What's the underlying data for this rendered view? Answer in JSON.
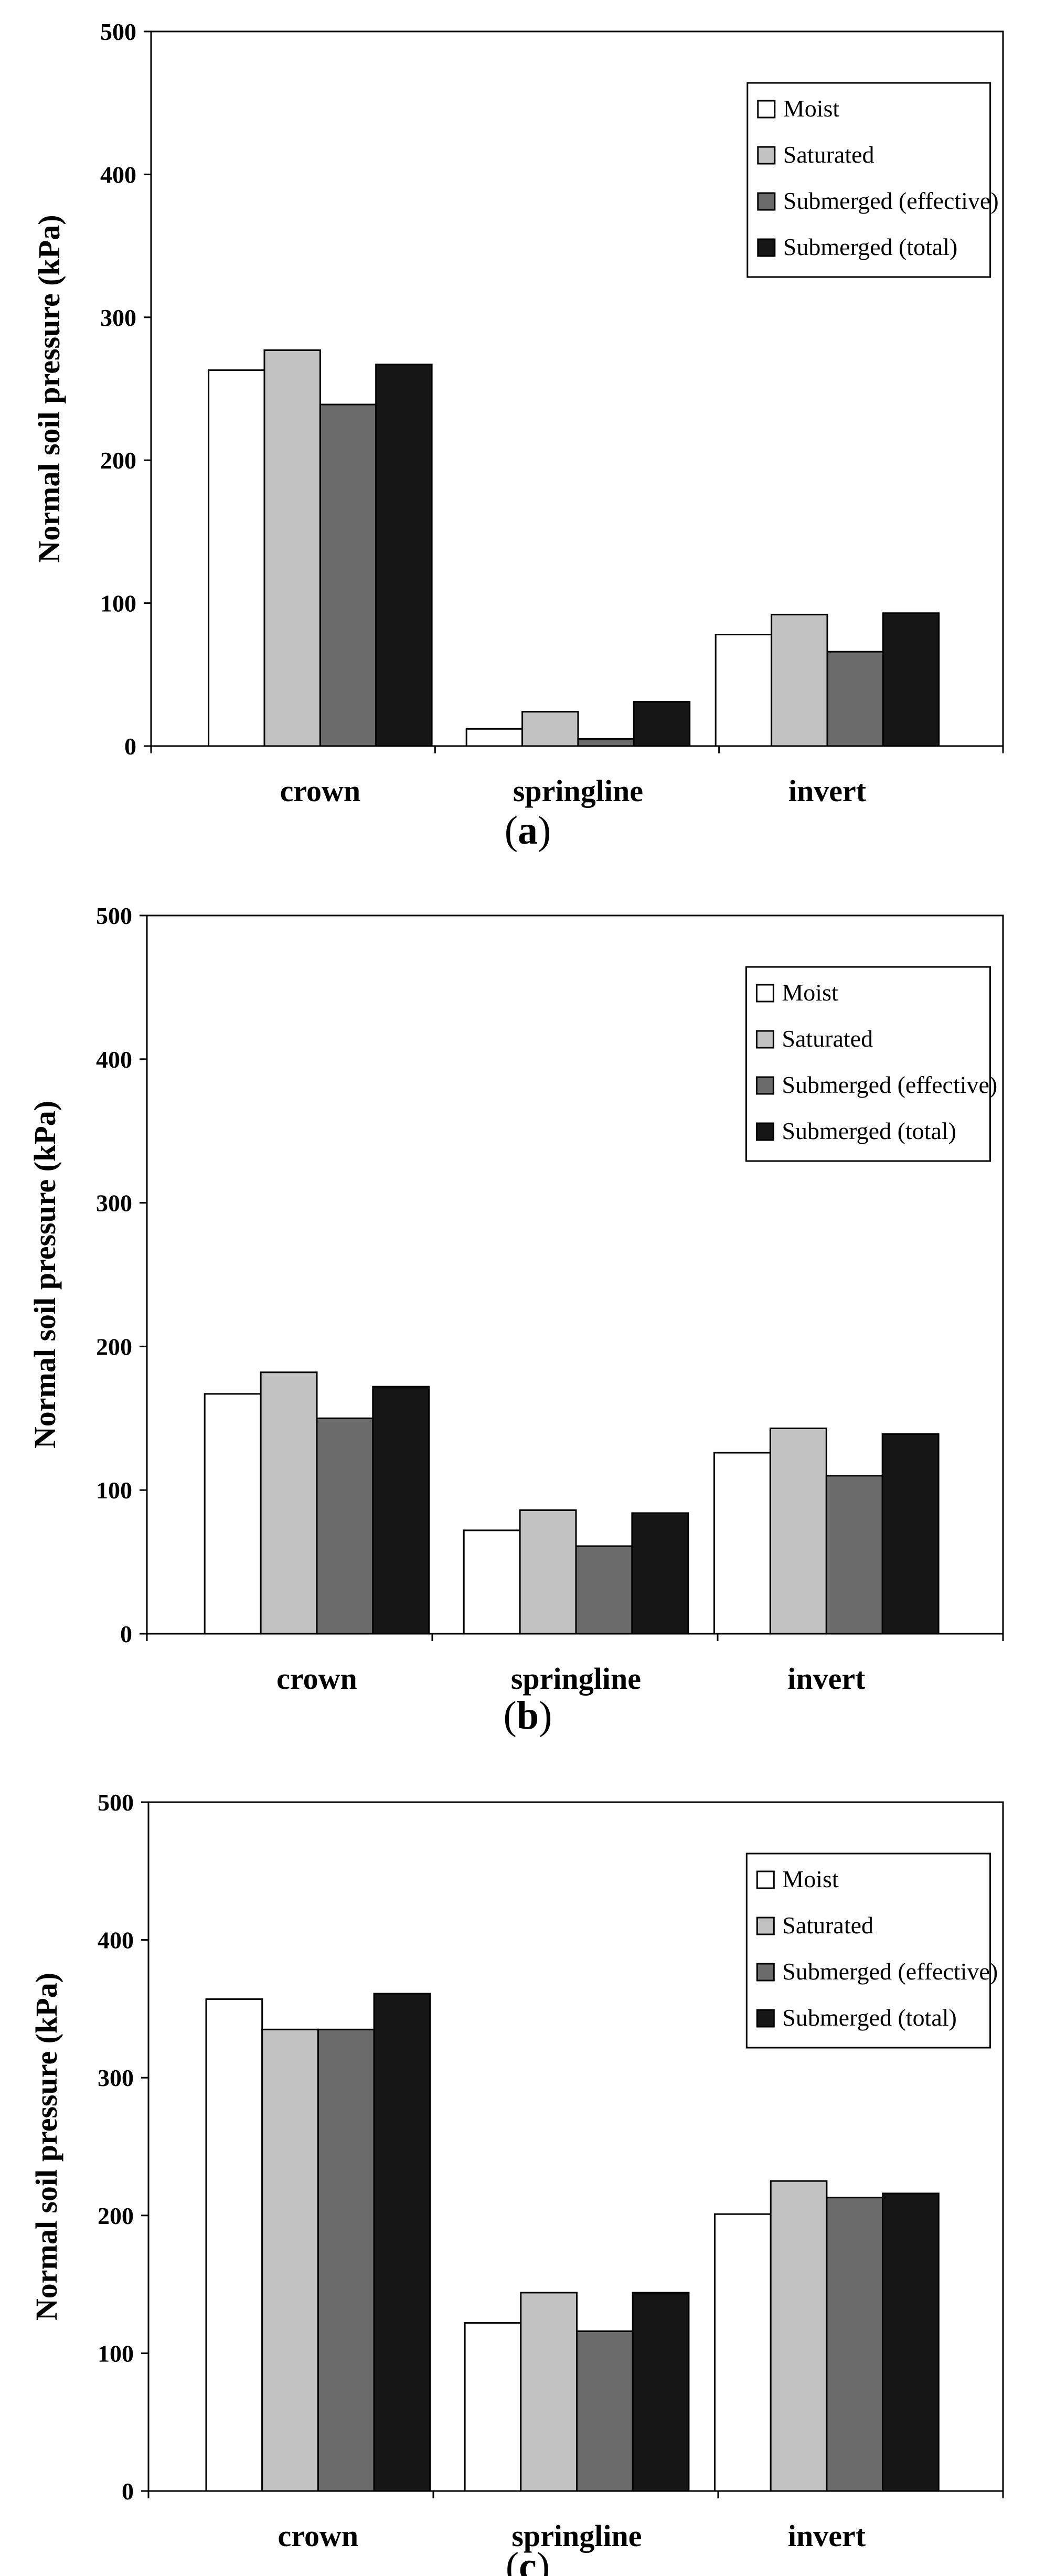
{
  "colors": {
    "Moist": "#ffffff",
    "Saturated": "#c2c2c2",
    "Submerged (effective)": "#6b6b6b",
    "Submerged (total)": "#161616"
  },
  "chart_data": [
    {
      "type": "bar",
      "panel_label": "a",
      "categories": [
        "crown",
        "springline",
        "invert"
      ],
      "series": [
        {
          "name": "Moist",
          "values": [
            263,
            12,
            78
          ]
        },
        {
          "name": "Saturated",
          "values": [
            277,
            24,
            92
          ]
        },
        {
          "name": "Submerged (effective)",
          "values": [
            239,
            5,
            66
          ]
        },
        {
          "name": "Submerged (total)",
          "values": [
            267,
            31,
            93
          ]
        }
      ],
      "ylabel": "Normal soil pressure (kPa)",
      "xlabel": "",
      "ylim": [
        0,
        500
      ],
      "yticks": [
        0,
        100,
        200,
        300,
        400,
        500
      ],
      "legend": "top-right",
      "grid": false
    },
    {
      "type": "bar",
      "panel_label": "b",
      "categories": [
        "crown",
        "springline",
        "invert"
      ],
      "series": [
        {
          "name": "Moist",
          "values": [
            167,
            72,
            126
          ]
        },
        {
          "name": "Saturated",
          "values": [
            182,
            86,
            143
          ]
        },
        {
          "name": "Submerged (effective)",
          "values": [
            150,
            61,
            110
          ]
        },
        {
          "name": "Submerged (total)",
          "values": [
            172,
            84,
            139
          ]
        }
      ],
      "ylabel": "Normal soil pressure (kPa)",
      "xlabel": "",
      "ylim": [
        0,
        500
      ],
      "yticks": [
        0,
        100,
        200,
        300,
        400,
        500
      ],
      "legend": "top-right",
      "grid": false
    },
    {
      "type": "bar",
      "panel_label": "c",
      "categories": [
        "crown",
        "springline",
        "invert"
      ],
      "series": [
        {
          "name": "Moist",
          "values": [
            357,
            122,
            201
          ]
        },
        {
          "name": "Saturated",
          "values": [
            335,
            144,
            225
          ]
        },
        {
          "name": "Submerged (effective)",
          "values": [
            335,
            116,
            213
          ]
        },
        {
          "name": "Submerged (total)",
          "values": [
            361,
            144,
            216
          ]
        }
      ],
      "ylabel": "Normal soil pressure (kPa)",
      "xlabel": "",
      "ylim": [
        0,
        500
      ],
      "yticks": [
        0,
        100,
        200,
        300,
        400,
        500
      ],
      "legend": "top-right",
      "grid": false
    }
  ]
}
